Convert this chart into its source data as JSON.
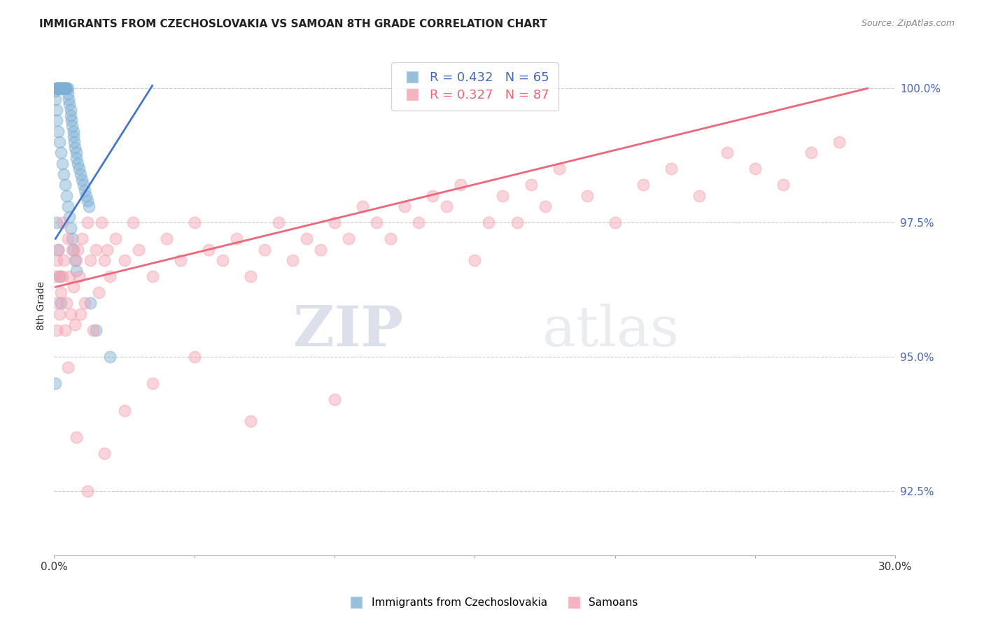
{
  "title": "IMMIGRANTS FROM CZECHOSLOVAKIA VS SAMOAN 8TH GRADE CORRELATION CHART",
  "source": "Source: ZipAtlas.com",
  "ylabel": "8th Grade",
  "right_yticks": [
    92.5,
    95.0,
    97.5,
    100.0
  ],
  "xmin": 0.0,
  "xmax": 30.0,
  "ymin": 91.3,
  "ymax": 100.6,
  "blue_R": 0.432,
  "blue_N": 65,
  "pink_R": 0.327,
  "pink_N": 87,
  "blue_color": "#7BAFD4",
  "pink_color": "#F4A0B0",
  "blue_line_color": "#4477CC",
  "pink_line_color": "#EE6677",
  "legend_label_blue": "Immigrants from Czechoslovakia",
  "legend_label_pink": "Samoans",
  "watermark_zip": "ZIP",
  "watermark_atlas": "atlas",
  "blue_scatter_x": [
    0.05,
    0.08,
    0.1,
    0.12,
    0.15,
    0.18,
    0.2,
    0.22,
    0.25,
    0.28,
    0.3,
    0.32,
    0.35,
    0.38,
    0.4,
    0.42,
    0.45,
    0.48,
    0.5,
    0.52,
    0.55,
    0.58,
    0.6,
    0.62,
    0.65,
    0.68,
    0.7,
    0.72,
    0.75,
    0.78,
    0.8,
    0.85,
    0.9,
    0.95,
    1.0,
    1.05,
    1.1,
    1.15,
    1.2,
    1.25,
    0.05,
    0.08,
    0.1,
    0.15,
    0.2,
    0.25,
    0.3,
    0.35,
    0.4,
    0.45,
    0.5,
    0.55,
    0.6,
    0.65,
    0.7,
    0.75,
    0.8,
    1.3,
    1.5,
    2.0,
    0.1,
    0.15,
    0.2,
    0.25,
    0.05
  ],
  "blue_scatter_y": [
    99.95,
    100.0,
    100.0,
    100.0,
    100.0,
    100.0,
    100.0,
    100.0,
    100.0,
    100.0,
    100.0,
    100.0,
    100.0,
    100.0,
    100.0,
    100.0,
    100.0,
    100.0,
    99.9,
    99.8,
    99.7,
    99.6,
    99.5,
    99.4,
    99.3,
    99.2,
    99.1,
    99.0,
    98.9,
    98.8,
    98.7,
    98.6,
    98.5,
    98.4,
    98.3,
    98.2,
    98.1,
    98.0,
    97.9,
    97.8,
    99.8,
    99.6,
    99.4,
    99.2,
    99.0,
    98.8,
    98.6,
    98.4,
    98.2,
    98.0,
    97.8,
    97.6,
    97.4,
    97.2,
    97.0,
    96.8,
    96.6,
    96.0,
    95.5,
    95.0,
    97.5,
    97.0,
    96.5,
    96.0,
    94.5
  ],
  "pink_scatter_x": [
    0.05,
    0.08,
    0.1,
    0.12,
    0.15,
    0.18,
    0.2,
    0.25,
    0.3,
    0.35,
    0.4,
    0.45,
    0.5,
    0.55,
    0.6,
    0.65,
    0.7,
    0.75,
    0.8,
    0.85,
    0.9,
    0.95,
    1.0,
    1.1,
    1.2,
    1.3,
    1.4,
    1.5,
    1.6,
    1.7,
    1.8,
    1.9,
    2.0,
    2.2,
    2.5,
    2.8,
    3.0,
    3.5,
    4.0,
    4.5,
    5.0,
    5.5,
    6.0,
    6.5,
    7.0,
    7.5,
    8.0,
    8.5,
    9.0,
    9.5,
    10.0,
    10.5,
    11.0,
    11.5,
    12.0,
    12.5,
    13.0,
    13.5,
    14.0,
    14.5,
    15.0,
    15.5,
    16.0,
    16.5,
    17.0,
    17.5,
    18.0,
    19.0,
    20.0,
    21.0,
    22.0,
    23.0,
    24.0,
    25.0,
    26.0,
    27.0,
    28.0,
    0.3,
    0.5,
    0.8,
    1.2,
    1.8,
    2.5,
    3.5,
    5.0,
    7.0,
    10.0
  ],
  "pink_scatter_y": [
    96.5,
    96.8,
    95.5,
    96.0,
    97.0,
    96.5,
    95.8,
    96.2,
    97.5,
    96.8,
    95.5,
    96.0,
    97.2,
    96.5,
    95.8,
    97.0,
    96.3,
    95.6,
    96.8,
    97.0,
    96.5,
    95.8,
    97.2,
    96.0,
    97.5,
    96.8,
    95.5,
    97.0,
    96.2,
    97.5,
    96.8,
    97.0,
    96.5,
    97.2,
    96.8,
    97.5,
    97.0,
    96.5,
    97.2,
    96.8,
    97.5,
    97.0,
    96.8,
    97.2,
    96.5,
    97.0,
    97.5,
    96.8,
    97.2,
    97.0,
    97.5,
    97.2,
    97.8,
    97.5,
    97.2,
    97.8,
    97.5,
    98.0,
    97.8,
    98.2,
    96.8,
    97.5,
    98.0,
    97.5,
    98.2,
    97.8,
    98.5,
    98.0,
    97.5,
    98.2,
    98.5,
    98.0,
    98.8,
    98.5,
    98.2,
    98.8,
    99.0,
    96.5,
    94.8,
    93.5,
    92.5,
    93.2,
    94.0,
    94.5,
    95.0,
    93.8,
    94.2
  ],
  "blue_line_x": [
    0.05,
    3.5
  ],
  "blue_line_y": [
    97.2,
    100.05
  ],
  "pink_line_x": [
    0.05,
    29.0
  ],
  "pink_line_y": [
    96.3,
    100.0
  ]
}
